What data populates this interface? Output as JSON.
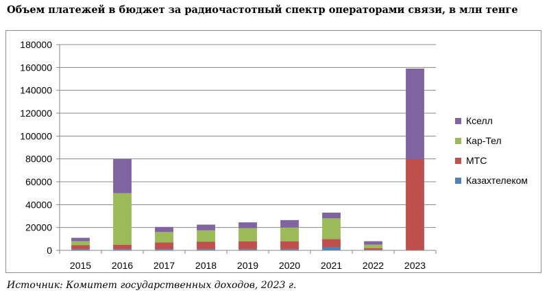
{
  "chart_data": {
    "type": "bar",
    "stacked": true,
    "title": "Объем платежей в бюджет за радиочастотный спектр операторами связи, в млн тенге",
    "source": "Источник: Комитет государственных доходов, 2023 г.",
    "categories": [
      "2015",
      "2016",
      "2017",
      "2018",
      "2019",
      "2020",
      "2021",
      "2022",
      "2023"
    ],
    "y_ticks": [
      "0",
      "20000",
      "40000",
      "60000",
      "80000",
      "100000",
      "120000",
      "140000",
      "160000",
      "180000"
    ],
    "ylim": [
      0,
      180000
    ],
    "grid": true,
    "legend_position": "right",
    "series": [
      {
        "name": "Казахтелеком",
        "color": "#4f81bd",
        "values": [
          1000,
          1000,
          1000,
          1000,
          1000,
          1000,
          3000,
          500,
          0
        ]
      },
      {
        "name": "МТС",
        "color": "#c0504d",
        "values": [
          3500,
          4000,
          6000,
          6500,
          7000,
          7000,
          7000,
          1500,
          80000
        ]
      },
      {
        "name": "Кар-Тел",
        "color": "#9bbb59",
        "values": [
          3500,
          45000,
          9000,
          10000,
          11500,
          12000,
          18000,
          3000,
          0
        ]
      },
      {
        "name": "Кселл",
        "color": "#8064a2",
        "values": [
          3000,
          30000,
          4500,
          5000,
          5000,
          6500,
          5000,
          3000,
          79000
        ]
      }
    ]
  }
}
